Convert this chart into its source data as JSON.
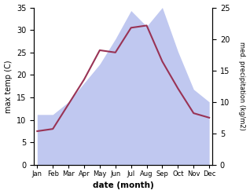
{
  "months": [
    "Jan",
    "Feb",
    "Mar",
    "Apr",
    "May",
    "Jun",
    "Jul",
    "Aug",
    "Sep",
    "Oct",
    "Nov",
    "Dec"
  ],
  "month_indices": [
    0,
    1,
    2,
    3,
    4,
    5,
    6,
    7,
    8,
    9,
    10,
    11
  ],
  "temperature": [
    7.5,
    8.0,
    13.5,
    19.0,
    25.5,
    25.0,
    30.5,
    31.0,
    23.0,
    17.0,
    11.5,
    10.5
  ],
  "precipitation": [
    8.0,
    8.0,
    10.0,
    13.0,
    16.0,
    20.0,
    24.5,
    22.0,
    25.0,
    18.0,
    12.0,
    10.0
  ],
  "temp_color": "#993355",
  "precip_fill_color": "#c0c8f0",
  "temp_ylim": [
    0,
    35
  ],
  "precip_ylim": [
    0,
    25
  ],
  "temp_yticks": [
    0,
    5,
    10,
    15,
    20,
    25,
    30,
    35
  ],
  "precip_yticks": [
    0,
    5,
    10,
    15,
    20,
    25
  ],
  "xlabel": "date (month)",
  "ylabel_left": "max temp (C)",
  "ylabel_right": "med. precipitation (kg/m2)",
  "background_color": "#ffffff"
}
